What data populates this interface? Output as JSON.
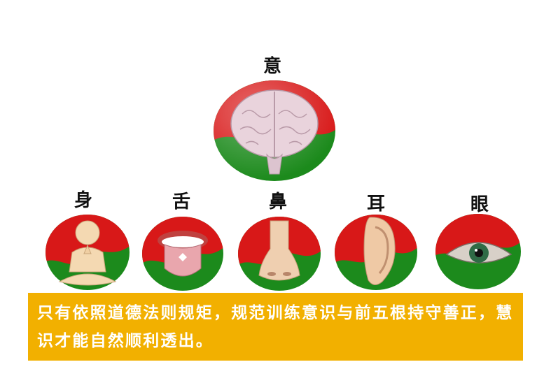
{
  "diagram": {
    "top": {
      "label": "意",
      "icon": "brain-icon"
    },
    "senses": [
      {
        "label": "身",
        "icon": "meditating-figure-icon"
      },
      {
        "label": "舌",
        "icon": "tongue-icon"
      },
      {
        "label": "鼻",
        "icon": "nose-icon"
      },
      {
        "label": "耳",
        "icon": "ear-icon"
      },
      {
        "label": "眼",
        "icon": "eye-icon"
      }
    ],
    "caption": "只有依照道德法则规矩，规范训练意识与前五根持守善正，慧识才能自然顺利透出。",
    "colors": {
      "red": "#d81818",
      "green": "#1c8a1c",
      "caption_bg": "#f2b000",
      "caption_text": "#ffffff"
    }
  }
}
